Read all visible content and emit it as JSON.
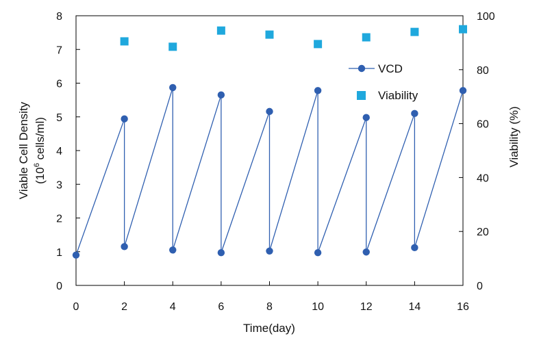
{
  "chart_data": {
    "type": "line",
    "title": "",
    "xlabel": "Time(day)",
    "ylabel_line1": "Viable Cell Density",
    "ylabel_line2_prefix": "(10",
    "ylabel_line2_sup": "6",
    "ylabel_line2_suffix": " cells/ml)",
    "y2label": "Viability (%)",
    "xlim": [
      0,
      16
    ],
    "ylim": [
      0,
      8
    ],
    "y2lim": [
      0,
      100
    ],
    "xticks": [
      "0",
      "2",
      "4",
      "6",
      "8",
      "10",
      "12",
      "14",
      "16"
    ],
    "yticks": [
      "0",
      "1",
      "2",
      "3",
      "4",
      "5",
      "6",
      "7",
      "8"
    ],
    "y2ticks": [
      "0",
      "20",
      "40",
      "60",
      "80",
      "100"
    ],
    "grid": false,
    "legend_position": "top-right",
    "series": [
      {
        "name": "VCD",
        "axis": "left",
        "style": "line-with-markers",
        "color": "#2f5fb0",
        "points": [
          [
            0,
            0.9
          ],
          [
            2,
            4.94
          ],
          [
            2,
            1.15
          ],
          [
            4,
            5.87
          ],
          [
            4,
            1.05
          ],
          [
            6,
            5.65
          ],
          [
            6,
            0.97
          ],
          [
            8,
            5.16
          ],
          [
            8,
            1.02
          ],
          [
            10,
            5.78
          ],
          [
            10,
            0.97
          ],
          [
            12,
            4.98
          ],
          [
            12,
            0.99
          ],
          [
            14,
            5.1
          ],
          [
            14,
            1.12
          ],
          [
            16,
            5.78
          ]
        ]
      },
      {
        "name": "Viability",
        "axis": "right",
        "style": "square-markers",
        "color": "#1fa8dd",
        "points": [
          [
            2,
            90.5
          ],
          [
            4,
            88.5
          ],
          [
            6,
            94.5
          ],
          [
            8,
            93.0
          ],
          [
            10,
            89.5
          ],
          [
            12,
            92.0
          ],
          [
            14,
            94.0
          ],
          [
            16,
            95.0
          ]
        ]
      }
    ]
  }
}
